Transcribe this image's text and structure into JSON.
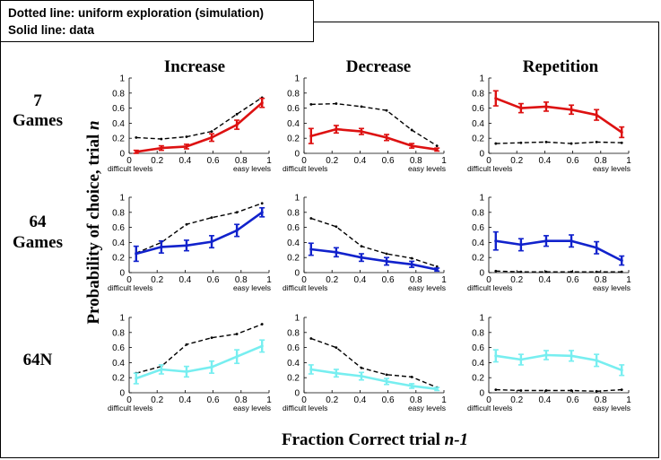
{
  "legend": {
    "dotted": "Dotted line: uniform exploration (simulation)",
    "solid": "Solid line: data"
  },
  "columns": [
    "Increase",
    "Decrease",
    "Repetition"
  ],
  "rows": [
    {
      "label": [
        "7",
        "Games"
      ],
      "color": "#dd1111"
    },
    {
      "label": [
        "64",
        "Games"
      ],
      "color": "#1122cc"
    },
    {
      "label": [
        "64N"
      ],
      "color": "#77eef0"
    }
  ],
  "xlabel_prefix": "Fraction Correct trial ",
  "xlabel_italic": "n-1",
  "ylabel_prefix": "Probability of choice, trial ",
  "ylabel_italic": "n",
  "left_end_label": "difficult levels",
  "right_end_label": "easy levels",
  "chart_data": {
    "type": "line",
    "xlim": [
      0,
      1
    ],
    "ylim": [
      0,
      1
    ],
    "xticks": [
      0,
      0.2,
      0.4,
      0.6,
      0.8,
      1
    ],
    "yticks": [
      0,
      0.2,
      0.4,
      0.6,
      0.8,
      1
    ],
    "x": [
      0.05,
      0.23,
      0.41,
      0.59,
      0.77,
      0.95
    ],
    "panels": [
      {
        "row": "7 Games",
        "column": "Increase",
        "data": [
          0.02,
          0.07,
          0.09,
          0.21,
          0.38,
          0.67
        ],
        "err": [
          0.02,
          0.03,
          0.03,
          0.05,
          0.06,
          0.06
        ],
        "sim": [
          0.21,
          0.19,
          0.22,
          0.29,
          0.52,
          0.74
        ]
      },
      {
        "row": "7 Games",
        "column": "Decrease",
        "data": [
          0.23,
          0.32,
          0.29,
          0.21,
          0.1,
          0.05
        ],
        "err": [
          0.1,
          0.05,
          0.04,
          0.04,
          0.03,
          0.02
        ],
        "sim": [
          0.65,
          0.66,
          0.62,
          0.57,
          0.31,
          0.1
        ]
      },
      {
        "row": "7 Games",
        "column": "Repetition",
        "data": [
          0.73,
          0.6,
          0.62,
          0.58,
          0.51,
          0.28
        ],
        "err": [
          0.1,
          0.06,
          0.06,
          0.06,
          0.07,
          0.07
        ],
        "sim": [
          0.13,
          0.14,
          0.15,
          0.13,
          0.15,
          0.14
        ]
      },
      {
        "row": "64 Games",
        "column": "Increase",
        "data": [
          0.25,
          0.34,
          0.36,
          0.41,
          0.56,
          0.8
        ],
        "err": [
          0.1,
          0.08,
          0.07,
          0.08,
          0.08,
          0.06
        ],
        "sim": [
          0.26,
          0.4,
          0.64,
          0.73,
          0.8,
          0.92
        ]
      },
      {
        "row": "64 Games",
        "column": "Decrease",
        "data": [
          0.31,
          0.27,
          0.2,
          0.15,
          0.11,
          0.04
        ],
        "err": [
          0.08,
          0.06,
          0.05,
          0.05,
          0.04,
          0.02
        ],
        "sim": [
          0.72,
          0.61,
          0.35,
          0.25,
          0.19,
          0.08
        ]
      },
      {
        "row": "64 Games",
        "column": "Repetition",
        "data": [
          0.42,
          0.37,
          0.42,
          0.42,
          0.33,
          0.16
        ],
        "err": [
          0.12,
          0.08,
          0.07,
          0.08,
          0.08,
          0.06
        ],
        "sim": [
          0.02,
          0.01,
          0.01,
          0.01,
          0.01,
          0.01
        ]
      },
      {
        "row": "64N",
        "column": "Increase",
        "data": [
          0.19,
          0.31,
          0.28,
          0.34,
          0.48,
          0.62
        ],
        "err": [
          0.07,
          0.06,
          0.07,
          0.08,
          0.09,
          0.08
        ],
        "sim": [
          0.26,
          0.35,
          0.64,
          0.73,
          0.78,
          0.91
        ]
      },
      {
        "row": "64N",
        "column": "Decrease",
        "data": [
          0.31,
          0.26,
          0.22,
          0.15,
          0.09,
          0.05
        ],
        "err": [
          0.06,
          0.05,
          0.05,
          0.04,
          0.03,
          0.02
        ],
        "sim": [
          0.72,
          0.6,
          0.33,
          0.24,
          0.21,
          0.07
        ]
      },
      {
        "row": "64N",
        "column": "Repetition",
        "data": [
          0.49,
          0.44,
          0.5,
          0.49,
          0.43,
          0.3
        ],
        "err": [
          0.08,
          0.07,
          0.06,
          0.07,
          0.08,
          0.07
        ],
        "sim": [
          0.04,
          0.03,
          0.03,
          0.03,
          0.02,
          0.04
        ]
      }
    ]
  }
}
